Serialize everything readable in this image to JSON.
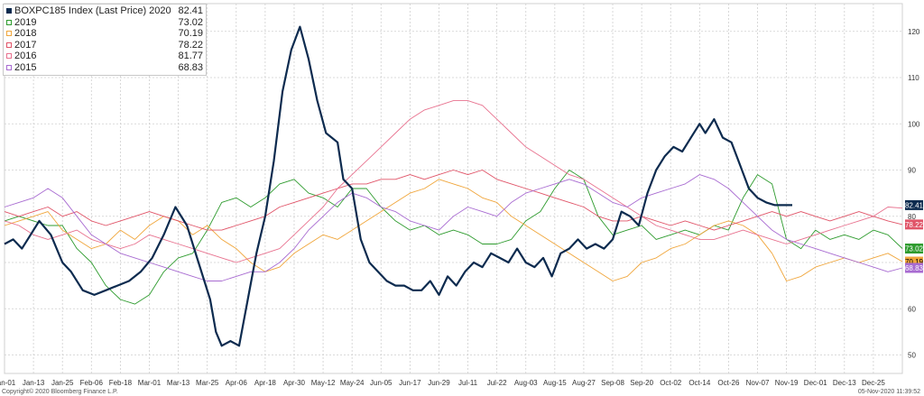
{
  "legend": [
    {
      "name": "BOXPC185 Index (Last Price) 2020",
      "value": "82.41",
      "color": "#0d2b4f"
    },
    {
      "name": "2019",
      "value": "73.02",
      "color": "#2e9b2e"
    },
    {
      "name": "2018",
      "value": "70.19",
      "color": "#f0a63c"
    },
    {
      "name": "2017",
      "value": "78.22",
      "color": "#e05468"
    },
    {
      "name": "2016",
      "value": "81.77",
      "color": "#e8728f"
    },
    {
      "name": "2015",
      "value": "68.83",
      "color": "#a86bd1"
    }
  ],
  "footer": {
    "copyright": "Copyright© 2020 Bloomberg Finance L.P.",
    "timestamp": "05-Nov-2020 11:39:52"
  },
  "chart_data": {
    "type": "line",
    "ylim": [
      46,
      126
    ],
    "y_ticks": [
      50,
      60,
      70,
      80,
      90,
      100,
      110,
      120
    ],
    "x_tick_labels": [
      "Jan-01",
      "Jan-13",
      "Jan-25",
      "Feb-06",
      "Feb-18",
      "Mar-01",
      "Mar-13",
      "Mar-25",
      "Apr-06",
      "Apr-18",
      "Apr-30",
      "May-12",
      "May-24",
      "Jun-05",
      "Jun-17",
      "Jun-29",
      "Jul-11",
      "Jul-22",
      "Aug-03",
      "Aug-15",
      "Aug-27",
      "Sep-08",
      "Sep-20",
      "Oct-02",
      "Oct-14",
      "Oct-26",
      "Nov-07",
      "Nov-19",
      "Dec-01",
      "Dec-13",
      "Dec-25"
    ],
    "x_domain": [
      0,
      31
    ],
    "grid": true,
    "legend_position": "top-left",
    "last_value_labels": [
      {
        "text": "82.41",
        "value": 82.41,
        "bg": "#0d2b4f",
        "fg": "#ffffff"
      },
      {
        "text": "78.22",
        "value": 78.22,
        "bg": "#e05468",
        "fg": "#ffffff"
      },
      {
        "text": "73.02",
        "value": 73.02,
        "bg": "#2e9b2e",
        "fg": "#ffffff"
      },
      {
        "text": "70.19",
        "value": 70.19,
        "bg": "#f0a63c",
        "fg": "#000000"
      },
      {
        "text": "68.83",
        "value": 68.83,
        "bg": "#a86bd1",
        "fg": "#ffffff"
      }
    ],
    "series": [
      {
        "name": "BOXPC185 Index (Last Price) 2020",
        "color": "#0d2b4f",
        "width": 2.2,
        "x": [
          0,
          0.3,
          0.6,
          0.9,
          1.2,
          1.6,
          2.0,
          2.3,
          2.7,
          3.1,
          3.5,
          3.9,
          4.3,
          4.7,
          5.1,
          5.5,
          5.9,
          6.3,
          6.7,
          7.1,
          7.3,
          7.5,
          7.8,
          8.1,
          8.4,
          8.7,
          9.0,
          9.3,
          9.6,
          9.9,
          10.2,
          10.5,
          10.8,
          11.1,
          11.3,
          11.5,
          11.7,
          12.0,
          12.3,
          12.6,
          12.9,
          13.2,
          13.5,
          13.8,
          14.1,
          14.4,
          14.7,
          15.0,
          15.3,
          15.6,
          15.9,
          16.2,
          16.5,
          16.8,
          17.1,
          17.4,
          17.7,
          18.0,
          18.3,
          18.6,
          18.9,
          19.2,
          19.5,
          19.8,
          20.1,
          20.4,
          20.7,
          21.0,
          21.3,
          21.6,
          21.9,
          22.2,
          22.5,
          22.8,
          23.1,
          23.4,
          23.7,
          24.0,
          24.2,
          24.5,
          24.8,
          25.1,
          25.4,
          25.7,
          26.0,
          26.3,
          26.6,
          26.9,
          27.2
        ],
        "values": [
          74,
          75,
          73,
          76,
          79,
          76,
          70,
          68,
          64,
          63,
          64,
          65,
          66,
          68,
          71,
          76,
          82,
          78,
          70,
          62,
          55,
          52,
          53,
          52,
          62,
          72,
          80,
          92,
          107,
          116,
          121,
          114,
          105,
          98,
          97,
          96,
          88,
          86,
          75,
          70,
          68,
          66,
          65,
          65,
          64,
          64,
          66,
          63,
          67,
          65,
          68,
          70,
          69,
          72,
          71,
          70,
          73,
          70,
          69,
          71,
          67,
          72,
          73,
          75,
          73,
          74,
          73,
          75,
          81,
          80,
          78,
          85,
          90,
          93,
          95,
          94,
          97,
          100,
          98,
          101,
          97,
          96,
          91,
          86,
          84,
          83,
          82.41,
          82.41,
          82.41
        ]
      },
      {
        "name": "2019",
        "color": "#2e9b2e",
        "width": 0.9,
        "x": [
          0,
          0.5,
          1.0,
          1.5,
          2.0,
          2.5,
          3.0,
          3.5,
          4.0,
          4.5,
          5.0,
          5.5,
          6.0,
          6.5,
          7.0,
          7.5,
          8.0,
          8.5,
          9.0,
          9.5,
          10.0,
          10.5,
          11.0,
          11.5,
          12.0,
          12.5,
          13.0,
          13.5,
          14.0,
          14.5,
          15.0,
          15.5,
          16.0,
          16.5,
          17.0,
          17.5,
          18.0,
          18.5,
          19.0,
          19.5,
          20.0,
          20.5,
          21.0,
          21.5,
          22.0,
          22.5,
          23.0,
          23.5,
          24.0,
          24.5,
          25.0,
          25.5,
          26.0,
          26.5,
          27.0,
          27.5,
          28.0,
          28.5,
          29.0,
          29.5,
          30.0,
          30.5,
          31.0
        ],
        "values": [
          79,
          80,
          79,
          78,
          78,
          73,
          70,
          65,
          62,
          61,
          63,
          68,
          71,
          72,
          77,
          83,
          84,
          82,
          84,
          87,
          88,
          85,
          84,
          82,
          86,
          86,
          82,
          79,
          77,
          78,
          76,
          77,
          76,
          74,
          74,
          75,
          79,
          81,
          86,
          90,
          88,
          80,
          76,
          77,
          78,
          75,
          76,
          77,
          76,
          78,
          77,
          84,
          89,
          87,
          75,
          73,
          77,
          75,
          76,
          75,
          77,
          76,
          73.02
        ]
      },
      {
        "name": "2018",
        "color": "#f0a63c",
        "width": 0.9,
        "x": [
          0,
          0.5,
          1.0,
          1.5,
          2.0,
          2.5,
          3.0,
          3.5,
          4.0,
          4.5,
          5.0,
          5.5,
          6.0,
          6.5,
          7.0,
          7.5,
          8.0,
          8.5,
          9.0,
          9.5,
          10.0,
          10.5,
          11.0,
          11.5,
          12.0,
          12.5,
          13.0,
          13.5,
          14.0,
          14.5,
          15.0,
          15.5,
          16.0,
          16.5,
          17.0,
          17.5,
          18.0,
          18.5,
          19.0,
          19.5,
          20.0,
          20.5,
          21.0,
          21.5,
          22.0,
          22.5,
          23.0,
          23.5,
          24.0,
          24.5,
          25.0,
          25.5,
          26.0,
          26.5,
          27.0,
          27.5,
          28.0,
          28.5,
          29.0,
          29.5,
          30.0,
          30.5,
          31.0
        ],
        "values": [
          78,
          79,
          80,
          81,
          77,
          75,
          73,
          74,
          77,
          75,
          78,
          80,
          79,
          76,
          78,
          75,
          73,
          70,
          68,
          69,
          72,
          74,
          76,
          75,
          77,
          79,
          81,
          83,
          85,
          86,
          88,
          87,
          86,
          84,
          83,
          80,
          78,
          76,
          74,
          72,
          70,
          68,
          66,
          67,
          70,
          71,
          73,
          74,
          76,
          78,
          79,
          78,
          76,
          72,
          66,
          67,
          69,
          70,
          71,
          70,
          71,
          72,
          70.19
        ]
      },
      {
        "name": "2017",
        "color": "#e05468",
        "width": 0.9,
        "x": [
          0,
          0.5,
          1.0,
          1.5,
          2.0,
          2.5,
          3.0,
          3.5,
          4.0,
          4.5,
          5.0,
          5.5,
          6.0,
          6.5,
          7.0,
          7.5,
          8.0,
          8.5,
          9.0,
          9.5,
          10.0,
          10.5,
          11.0,
          11.5,
          12.0,
          12.5,
          13.0,
          13.5,
          14.0,
          14.5,
          15.0,
          15.5,
          16.0,
          16.5,
          17.0,
          17.5,
          18.0,
          18.5,
          19.0,
          19.5,
          20.0,
          20.5,
          21.0,
          21.5,
          22.0,
          22.5,
          23.0,
          23.5,
          24.0,
          24.5,
          25.0,
          25.5,
          26.0,
          26.5,
          27.0,
          27.5,
          28.0,
          28.5,
          29.0,
          29.5,
          30.0,
          30.5,
          31.0
        ],
        "values": [
          81,
          80,
          81,
          82,
          80,
          81,
          79,
          78,
          79,
          80,
          81,
          80,
          79,
          78,
          77,
          77,
          78,
          79,
          80,
          82,
          83,
          84,
          85,
          86,
          87,
          87,
          88,
          88,
          89,
          88,
          89,
          90,
          89,
          90,
          88,
          87,
          86,
          85,
          84,
          83,
          82,
          80,
          79,
          79,
          80,
          79,
          78,
          79,
          78,
          77,
          78,
          79,
          80,
          81,
          80,
          81,
          80,
          79,
          80,
          81,
          80,
          79,
          78.22
        ]
      },
      {
        "name": "2016",
        "color": "#e8728f",
        "width": 0.9,
        "x": [
          0,
          0.5,
          1.0,
          1.5,
          2.0,
          2.5,
          3.0,
          3.5,
          4.0,
          4.5,
          5.0,
          5.5,
          6.0,
          6.5,
          7.0,
          7.5,
          8.0,
          8.5,
          9.0,
          9.5,
          10.0,
          10.5,
          11.0,
          11.5,
          12.0,
          12.5,
          13.0,
          13.5,
          14.0,
          14.5,
          15.0,
          15.5,
          16.0,
          16.5,
          17.0,
          17.5,
          18.0,
          18.5,
          19.0,
          19.5,
          20.0,
          20.5,
          21.0,
          21.5,
          22.0,
          22.5,
          23.0,
          23.5,
          24.0,
          24.5,
          25.0,
          25.5,
          26.0,
          26.5,
          27.0,
          27.5,
          28.0,
          28.5,
          29.0,
          29.5,
          30.0,
          30.5,
          31.0
        ],
        "values": [
          79,
          78,
          76,
          75,
          76,
          77,
          75,
          74,
          73,
          74,
          76,
          75,
          74,
          73,
          72,
          71,
          70,
          71,
          72,
          73,
          76,
          79,
          82,
          86,
          89,
          92,
          95,
          98,
          101,
          103,
          104,
          105,
          105,
          104,
          101,
          98,
          95,
          93,
          91,
          89,
          88,
          86,
          84,
          82,
          80,
          78,
          77,
          76,
          75,
          75,
          76,
          77,
          76,
          75,
          74,
          75,
          76,
          77,
          78,
          79,
          80,
          82,
          81.77
        ]
      },
      {
        "name": "2015",
        "color": "#a86bd1",
        "width": 0.9,
        "x": [
          0,
          0.5,
          1.0,
          1.5,
          2.0,
          2.5,
          3.0,
          3.5,
          4.0,
          4.5,
          5.0,
          5.5,
          6.0,
          6.5,
          7.0,
          7.5,
          8.0,
          8.5,
          9.0,
          9.5,
          10.0,
          10.5,
          11.0,
          11.5,
          12.0,
          12.5,
          13.0,
          13.5,
          14.0,
          14.5,
          15.0,
          15.5,
          16.0,
          16.5,
          17.0,
          17.5,
          18.0,
          18.5,
          19.0,
          19.5,
          20.0,
          20.5,
          21.0,
          21.5,
          22.0,
          22.5,
          23.0,
          23.5,
          24.0,
          24.5,
          25.0,
          25.5,
          26.0,
          26.5,
          27.0,
          27.5,
          28.0,
          28.5,
          29.0,
          29.5,
          30.0,
          30.5,
          31.0
        ],
        "values": [
          82,
          83,
          84,
          86,
          84,
          80,
          76,
          74,
          72,
          71,
          70,
          69,
          68,
          67,
          66,
          66,
          67,
          68,
          68,
          70,
          73,
          77,
          80,
          83,
          85,
          84,
          82,
          81,
          79,
          78,
          77,
          80,
          82,
          81,
          80,
          83,
          85,
          86,
          87,
          88,
          87,
          85,
          83,
          82,
          84,
          85,
          86,
          87,
          89,
          88,
          86,
          83,
          80,
          77,
          75,
          74,
          73,
          72,
          71,
          70,
          69,
          68,
          68.83
        ]
      }
    ]
  }
}
